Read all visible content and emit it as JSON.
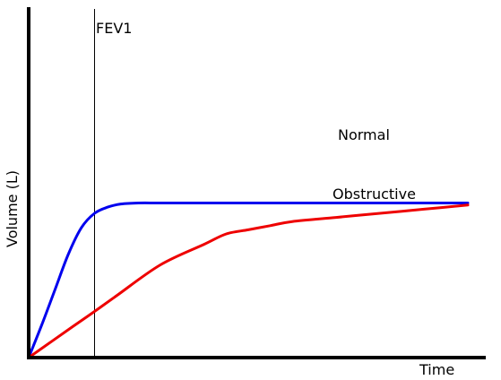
{
  "chart_data": {
    "type": "line",
    "title": "",
    "xlabel": "Time",
    "ylabel": "Volume (L)",
    "xlim": [
      0,
      1
    ],
    "ylim": [
      0,
      1
    ],
    "grid": false,
    "marker": {
      "label": "FEV1",
      "x": 0.15
    },
    "series": [
      {
        "name": "Normal",
        "color": "#0000ee",
        "x": [
          0,
          0.03,
          0.06,
          0.09,
          0.12,
          0.15,
          0.18,
          0.21,
          0.25,
          0.3,
          0.4,
          0.6,
          0.8,
          1.0
        ],
        "y": [
          0,
          0.16,
          0.33,
          0.5,
          0.63,
          0.7,
          0.73,
          0.745,
          0.75,
          0.75,
          0.75,
          0.75,
          0.75,
          0.75
        ]
      },
      {
        "name": "Obstructive",
        "color": "#ee0000",
        "x": [
          0,
          0.1,
          0.15,
          0.2,
          0.3,
          0.4,
          0.45,
          0.5,
          0.55,
          0.6,
          0.7,
          0.8,
          0.9,
          1.0
        ],
        "y": [
          0,
          0.15,
          0.224,
          0.3,
          0.45,
          0.55,
          0.6,
          0.62,
          0.64,
          0.66,
          0.68,
          0.7,
          0.72,
          0.74
        ]
      }
    ]
  }
}
